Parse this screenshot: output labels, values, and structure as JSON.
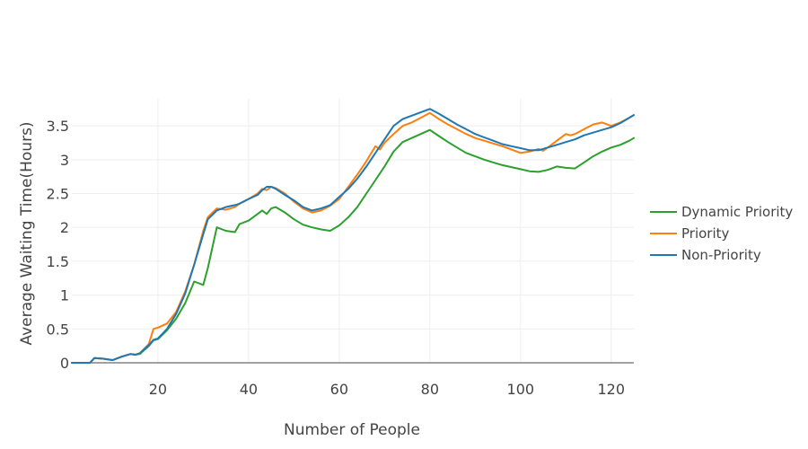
{
  "chart_data": {
    "type": "line",
    "title": "",
    "xlabel": "Number of People",
    "ylabel": "Average Waiting Time(Hours)",
    "xlim": [
      1,
      125
    ],
    "ylim": [
      0,
      3.9
    ],
    "x_ticks": [
      20,
      40,
      60,
      80,
      100,
      120
    ],
    "y_ticks": [
      0,
      0.5,
      1,
      1.5,
      2,
      2.5,
      3,
      3.5
    ],
    "y_tick_labels": [
      "0",
      "0.5",
      "1",
      "1.5",
      "2",
      "2.5",
      "3",
      "3.5"
    ],
    "grid": true,
    "legend_position": "right",
    "series": [
      {
        "name": "Dynamic Priority",
        "color": "#2ca02c",
        "x": [
          1,
          5,
          6,
          8,
          10,
          12,
          14,
          15,
          16,
          18,
          19,
          20,
          22,
          24,
          26,
          28,
          30,
          31,
          33,
          35,
          37,
          38,
          40,
          42,
          43,
          44,
          45,
          46,
          48,
          50,
          52,
          54,
          56,
          58,
          60,
          62,
          64,
          66,
          68,
          70,
          72,
          74,
          76,
          78,
          80,
          82,
          84,
          86,
          88,
          90,
          92,
          94,
          96,
          98,
          100,
          102,
          104,
          106,
          108,
          110,
          112,
          114,
          116,
          118,
          120,
          122,
          124,
          125
        ],
        "y": [
          0,
          0,
          0.07,
          0.06,
          0.04,
          0.09,
          0.13,
          0.12,
          0.13,
          0.25,
          0.33,
          0.35,
          0.48,
          0.65,
          0.88,
          1.2,
          1.15,
          1.4,
          2.0,
          1.95,
          1.93,
          2.05,
          2.1,
          2.2,
          2.25,
          2.2,
          2.28,
          2.3,
          2.22,
          2.12,
          2.04,
          2.0,
          1.97,
          1.95,
          2.03,
          2.15,
          2.3,
          2.5,
          2.7,
          2.9,
          3.12,
          3.26,
          3.32,
          3.38,
          3.44,
          3.35,
          3.26,
          3.18,
          3.1,
          3.05,
          3.0,
          2.96,
          2.92,
          2.89,
          2.86,
          2.83,
          2.82,
          2.85,
          2.9,
          2.88,
          2.87,
          2.96,
          3.05,
          3.12,
          3.18,
          3.22,
          3.28,
          3.32
        ]
      },
      {
        "name": "Priority",
        "color": "#ff7f0e",
        "x": [
          1,
          5,
          6,
          8,
          10,
          12,
          14,
          15,
          16,
          18,
          19,
          20,
          22,
          24,
          26,
          28,
          30,
          31,
          33,
          35,
          37,
          38,
          40,
          42,
          43,
          44,
          45,
          46,
          48,
          50,
          52,
          54,
          56,
          58,
          60,
          62,
          64,
          66,
          68,
          69,
          70,
          72,
          74,
          76,
          78,
          80,
          82,
          84,
          86,
          88,
          90,
          92,
          94,
          96,
          98,
          100,
          102,
          104,
          105,
          106,
          108,
          110,
          111,
          112,
          114,
          116,
          118,
          120,
          122,
          124,
          125
        ],
        "y": [
          0,
          0,
          0.07,
          0.06,
          0.04,
          0.09,
          0.13,
          0.12,
          0.14,
          0.28,
          0.5,
          0.52,
          0.58,
          0.75,
          1.05,
          1.45,
          1.95,
          2.15,
          2.28,
          2.26,
          2.3,
          2.35,
          2.42,
          2.5,
          2.57,
          2.55,
          2.6,
          2.58,
          2.5,
          2.38,
          2.28,
          2.22,
          2.25,
          2.32,
          2.42,
          2.6,
          2.78,
          2.98,
          3.2,
          3.15,
          3.25,
          3.38,
          3.5,
          3.55,
          3.62,
          3.69,
          3.6,
          3.52,
          3.45,
          3.38,
          3.32,
          3.28,
          3.24,
          3.2,
          3.15,
          3.1,
          3.12,
          3.16,
          3.13,
          3.18,
          3.28,
          3.38,
          3.36,
          3.38,
          3.45,
          3.52,
          3.55,
          3.5,
          3.55,
          3.62,
          3.66
        ]
      },
      {
        "name": "Non-Priority",
        "color": "#1f77b4",
        "x": [
          1,
          5,
          6,
          8,
          10,
          12,
          14,
          15,
          16,
          18,
          19,
          20,
          22,
          24,
          26,
          28,
          30,
          31,
          33,
          35,
          37,
          38,
          40,
          42,
          43,
          44,
          45,
          46,
          48,
          50,
          52,
          54,
          56,
          58,
          60,
          62,
          64,
          66,
          68,
          70,
          72,
          74,
          76,
          78,
          80,
          82,
          84,
          86,
          88,
          90,
          92,
          94,
          96,
          98,
          100,
          102,
          104,
          106,
          108,
          110,
          112,
          114,
          116,
          118,
          120,
          122,
          124,
          125
        ],
        "y": [
          0,
          0,
          0.07,
          0.06,
          0.04,
          0.09,
          0.13,
          0.12,
          0.14,
          0.26,
          0.34,
          0.36,
          0.5,
          0.72,
          1.02,
          1.45,
          1.9,
          2.12,
          2.25,
          2.3,
          2.33,
          2.35,
          2.42,
          2.48,
          2.55,
          2.6,
          2.6,
          2.57,
          2.48,
          2.4,
          2.3,
          2.25,
          2.28,
          2.33,
          2.45,
          2.57,
          2.72,
          2.9,
          3.1,
          3.3,
          3.5,
          3.6,
          3.65,
          3.7,
          3.75,
          3.68,
          3.6,
          3.52,
          3.45,
          3.38,
          3.33,
          3.28,
          3.23,
          3.2,
          3.17,
          3.14,
          3.14,
          3.18,
          3.22,
          3.26,
          3.3,
          3.36,
          3.4,
          3.44,
          3.48,
          3.54,
          3.62,
          3.66
        ]
      }
    ]
  }
}
